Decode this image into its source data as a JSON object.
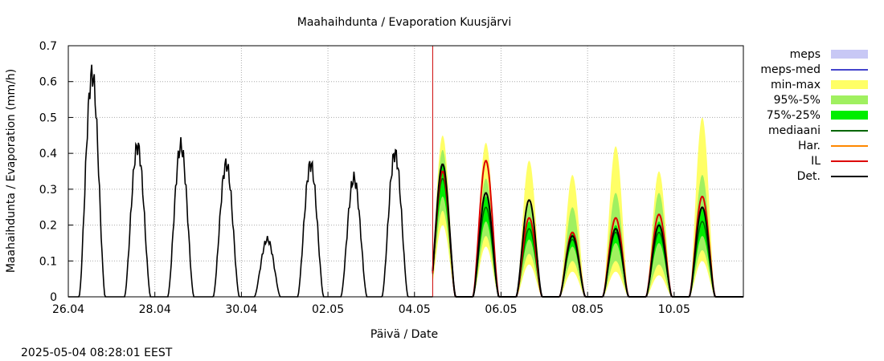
{
  "chart_data": {
    "type": "line",
    "title": "Maahaihdunta / Evaporation  Kuusjärvi",
    "xlabel": "Päivä / Date",
    "ylabel": "Maahaihdunta / Evaporation (mm/h)",
    "timestamp": "2025-05-04 08:28:01 EEST",
    "x_ticks": [
      "26.04",
      "28.04",
      "30.04",
      "02.05",
      "04.05",
      "06.05",
      "08.05",
      "10.05"
    ],
    "x_tick_days": [
      0,
      2,
      4,
      6,
      8,
      10,
      12,
      14
    ],
    "xlim_days": [
      0,
      15.6
    ],
    "now_day": 8.42,
    "ylim": [
      0,
      0.7
    ],
    "y_ticks": [
      0,
      0.1,
      0.2,
      0.3,
      0.4,
      0.5,
      0.6,
      0.7
    ],
    "grid": true,
    "legend_position": "outside-right",
    "legend": [
      {
        "label": "meps",
        "color": "#c8c8f5",
        "kind": "band"
      },
      {
        "label": "meps-med",
        "color": "#4444cc",
        "kind": "line"
      },
      {
        "label": "min-max",
        "color": "#ffff66",
        "kind": "band"
      },
      {
        "label": "95%-5%",
        "color": "#a0f060",
        "kind": "band"
      },
      {
        "label": "75%-25%",
        "color": "#00ee00",
        "kind": "band"
      },
      {
        "label": "mediaani",
        "color": "#006600",
        "kind": "line"
      },
      {
        "label": "Har.",
        "color": "#ff8800",
        "kind": "line"
      },
      {
        "label": "IL",
        "color": "#dd0000",
        "kind": "line"
      },
      {
        "label": "Det.",
        "color": "#000000",
        "kind": "line"
      }
    ],
    "observed_peaks": [
      {
        "day": 0.55,
        "value": 0.62
      },
      {
        "day": 1.6,
        "value": 0.42
      },
      {
        "day": 2.6,
        "value": 0.42
      },
      {
        "day": 3.65,
        "value": 0.37
      },
      {
        "day": 4.6,
        "value": 0.16
      },
      {
        "day": 5.6,
        "value": 0.37
      },
      {
        "day": 6.6,
        "value": 0.33
      },
      {
        "day": 7.55,
        "value": 0.4
      }
    ],
    "forecast_peaks": [
      {
        "day": 8.65,
        "det": 0.37,
        "il": 0.35,
        "med": 0.33,
        "p75": 0.37,
        "p25": 0.28,
        "p95": 0.41,
        "p5": 0.24,
        "max": 0.45,
        "min": 0.2
      },
      {
        "day": 9.65,
        "det": 0.29,
        "il": 0.38,
        "med": 0.25,
        "p75": 0.28,
        "p25": 0.21,
        "p95": 0.33,
        "p5": 0.17,
        "max": 0.43,
        "min": 0.14
      },
      {
        "day": 10.65,
        "det": 0.27,
        "il": 0.22,
        "med": 0.19,
        "p75": 0.21,
        "p25": 0.16,
        "p95": 0.26,
        "p5": 0.12,
        "max": 0.38,
        "min": 0.09
      },
      {
        "day": 11.65,
        "det": 0.17,
        "il": 0.18,
        "med": 0.16,
        "p75": 0.18,
        "p25": 0.14,
        "p95": 0.25,
        "p5": 0.1,
        "max": 0.34,
        "min": 0.07
      },
      {
        "day": 12.65,
        "det": 0.19,
        "il": 0.22,
        "med": 0.18,
        "p75": 0.2,
        "p25": 0.15,
        "p95": 0.29,
        "p5": 0.1,
        "max": 0.42,
        "min": 0.07
      },
      {
        "day": 13.65,
        "det": 0.2,
        "il": 0.23,
        "med": 0.18,
        "p75": 0.21,
        "p25": 0.15,
        "p95": 0.29,
        "p5": 0.09,
        "max": 0.35,
        "min": 0.06
      },
      {
        "day": 14.65,
        "det": 0.25,
        "il": 0.28,
        "med": 0.21,
        "p75": 0.25,
        "p25": 0.17,
        "p95": 0.34,
        "p5": 0.13,
        "max": 0.5,
        "min": 0.1
      }
    ]
  }
}
